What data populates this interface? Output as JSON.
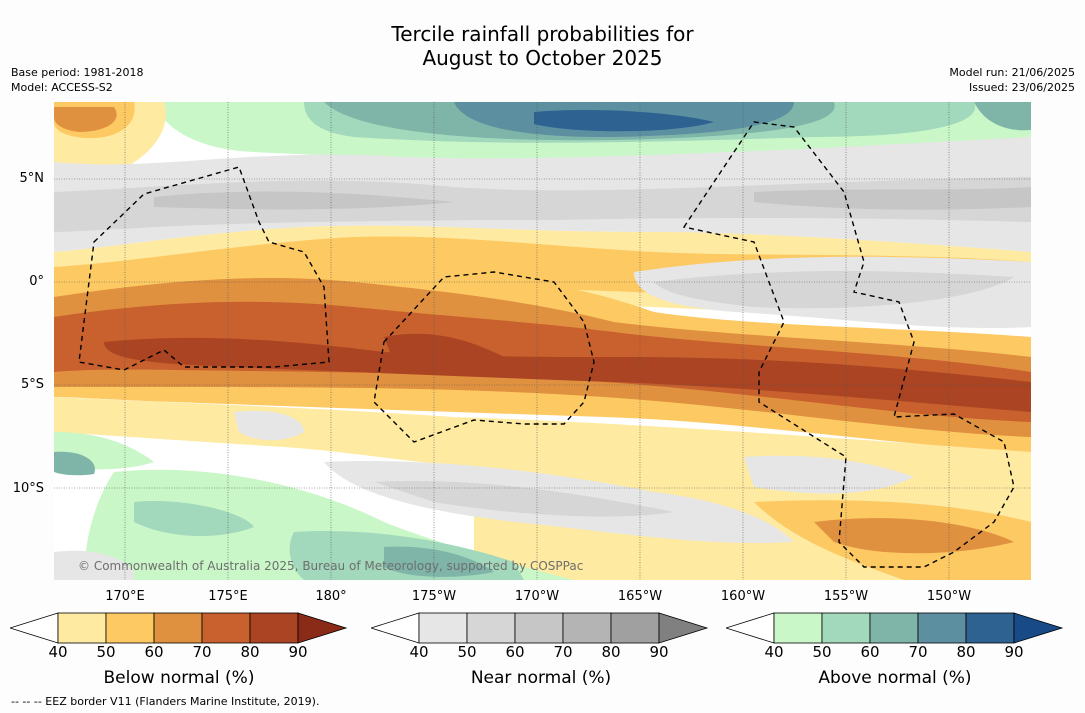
{
  "title_line1": "Tercile rainfall probabilities for",
  "title_line2": "August to October 2025",
  "base_period": "Base period: 1981-2018",
  "model": "Model: ACCESS-S2",
  "model_run": "Model run: 21/06/2025",
  "issued": "Issued: 23/06/2025",
  "lat_labels": [
    "5°N",
    "0°",
    "5°S",
    "10°S"
  ],
  "lon_labels": [
    "170°E",
    "175°E",
    "180°",
    "175°W",
    "170°W",
    "165°W",
    "160°W",
    "155°W",
    "150°W"
  ],
  "credit": "© Commonwealth of Australia 2025, Bureau of Meteorology, supported by COSPPac",
  "footnote": "--  --  -- EEZ border V11 (Flanders Marine Institute, 2019).",
  "colorbars": [
    {
      "label": "Below normal (%)",
      "ticks": [
        "40",
        "50",
        "60",
        "70",
        "80",
        "90"
      ],
      "colors": [
        "#ffffff",
        "#feeaa0",
        "#fdc963",
        "#e0913f",
        "#c9612e",
        "#aa4423",
        "#8a2b18"
      ]
    },
    {
      "label": "Near normal (%)",
      "ticks": [
        "40",
        "50",
        "60",
        "70",
        "80",
        "90"
      ],
      "colors": [
        "#ffffff",
        "#e6e6e6",
        "#d6d6d6",
        "#c6c6c6",
        "#b4b4b4",
        "#a0a0a0",
        "#808080"
      ]
    },
    {
      "label": "Above normal (%)",
      "ticks": [
        "40",
        "50",
        "60",
        "70",
        "80",
        "90"
      ],
      "colors": [
        "#ffffff",
        "#c9f7c8",
        "#a2d8bb",
        "#7eb5a8",
        "#5c8fa0",
        "#2e6291",
        "#174a86"
      ]
    }
  ]
}
